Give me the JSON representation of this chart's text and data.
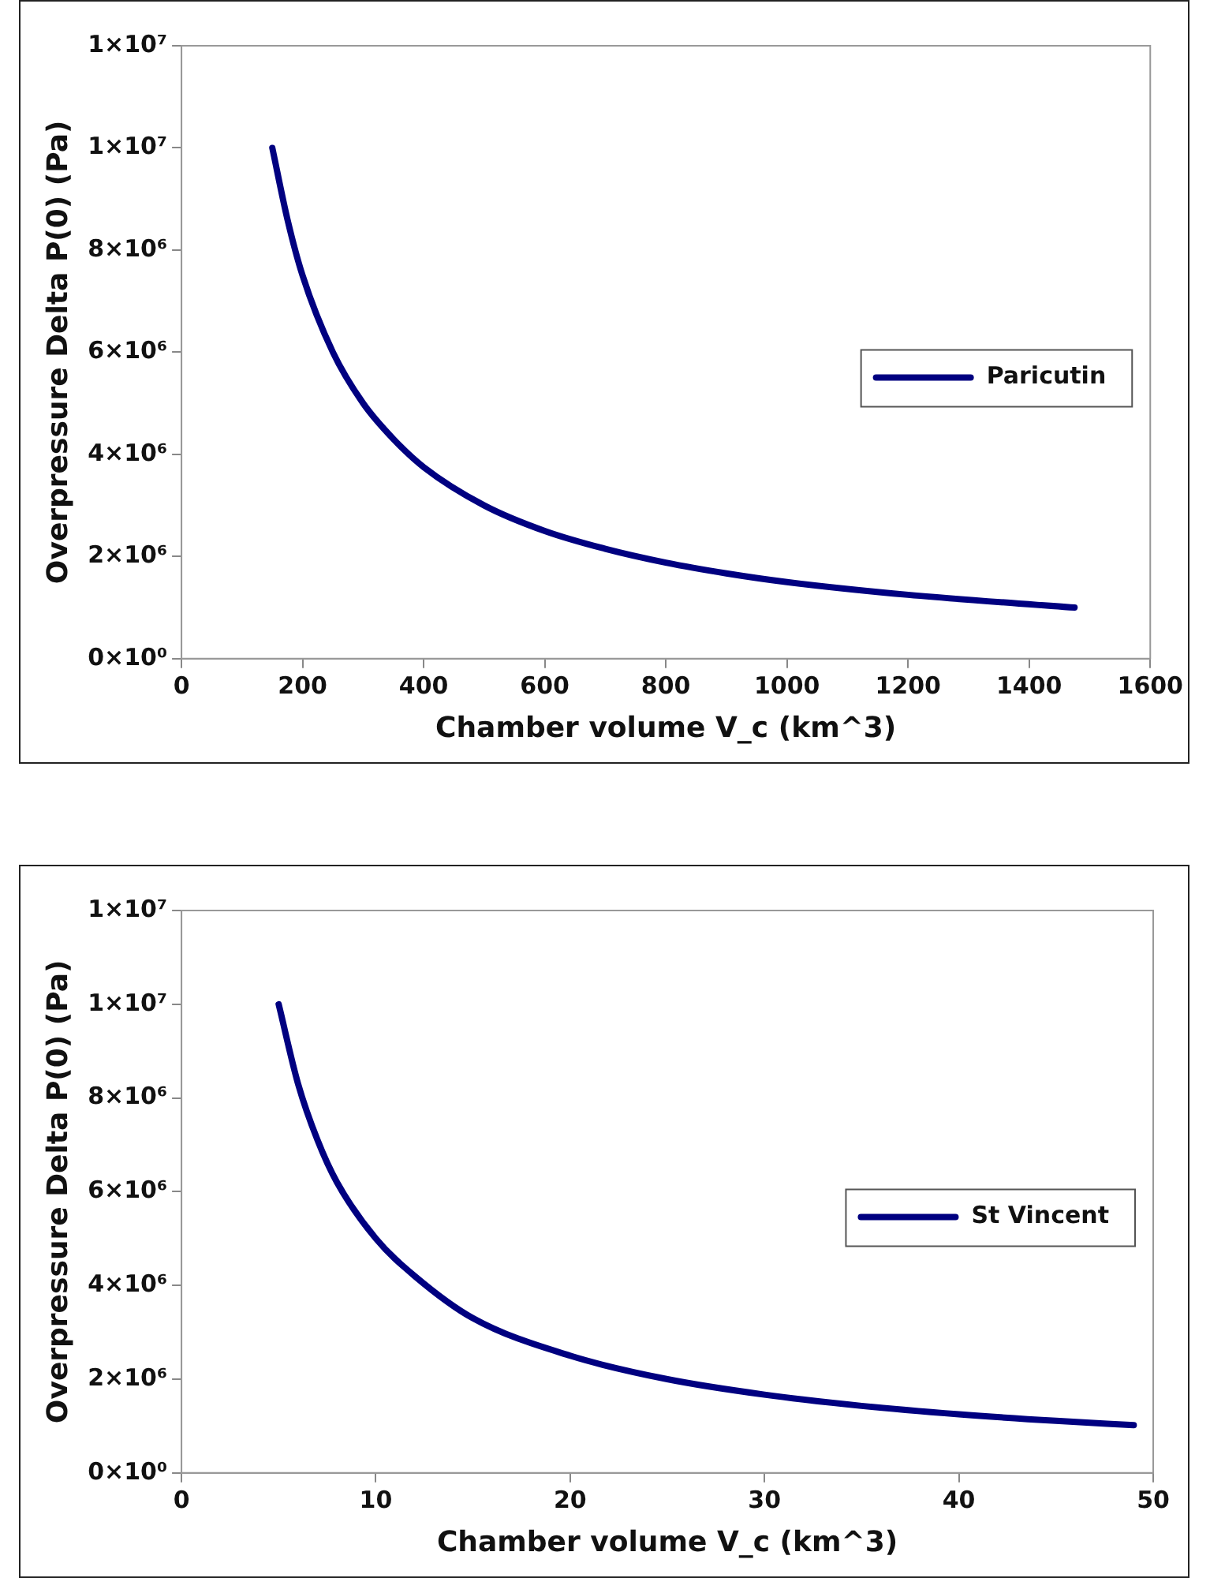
{
  "chart_data": [
    {
      "type": "line",
      "xlabel": "Chamber volume V_c (km^3)",
      "ylabel": "Overpressure Delta P(0) (Pa)",
      "xlim": [
        0,
        1600
      ],
      "xticks": [
        0,
        200,
        400,
        600,
        800,
        1000,
        1200,
        1400,
        1600
      ],
      "ylim": [
        0,
        12000000
      ],
      "yticks": [
        {
          "value": 0,
          "label": "0×10⁰"
        },
        {
          "value": 2000000,
          "label": "2×10⁶"
        },
        {
          "value": 4000000,
          "label": "4×10⁶"
        },
        {
          "value": 6000000,
          "label": "6×10⁶"
        },
        {
          "value": 8000000,
          "label": "8×10⁶"
        },
        {
          "value": 10000000,
          "label": "1×10⁷"
        },
        {
          "value": 12000000,
          "label": "1×10⁷"
        }
      ],
      "grid": false,
      "legend": "right",
      "marker": "none",
      "line_style": "solid",
      "series": [
        {
          "name": "Paricutin",
          "color": "#000080",
          "x": [
            150,
            175,
            200,
            250,
            300,
            350,
            400,
            500,
            600,
            700,
            800,
            900,
            1000,
            1200,
            1475
          ],
          "values": [
            10000000,
            8600000,
            7500000,
            6000000,
            5000000,
            4300000,
            3750000,
            3000000,
            2500000,
            2150000,
            1880000,
            1670000,
            1500000,
            1250000,
            1000000
          ]
        }
      ]
    },
    {
      "type": "line",
      "xlabel": "Chamber volume V_c (km^3)",
      "ylabel": "Overpressure Delta P(0) (Pa)",
      "xlim": [
        0,
        50
      ],
      "xticks": [
        0,
        10,
        20,
        30,
        40,
        50
      ],
      "ylim": [
        0,
        12000000
      ],
      "yticks": [
        {
          "value": 0,
          "label": "0×10⁰"
        },
        {
          "value": 2000000,
          "label": "2×10⁶"
        },
        {
          "value": 4000000,
          "label": "4×10⁶"
        },
        {
          "value": 6000000,
          "label": "6×10⁶"
        },
        {
          "value": 8000000,
          "label": "8×10⁶"
        },
        {
          "value": 10000000,
          "label": "1×10⁷"
        },
        {
          "value": 12000000,
          "label": "1×10⁷"
        }
      ],
      "grid": false,
      "legend": "right",
      "marker": "none",
      "line_style": "solid",
      "series": [
        {
          "name": "St Vincent",
          "color": "#000080",
          "x": [
            5,
            6,
            7,
            8,
            10,
            12,
            15,
            20,
            25,
            30,
            35,
            40,
            45,
            49
          ],
          "values": [
            10000000,
            8300000,
            7100000,
            6200000,
            5000000,
            4200000,
            3300000,
            2500000,
            2000000,
            1670000,
            1430000,
            1250000,
            1110000,
            1020000
          ]
        }
      ]
    }
  ]
}
